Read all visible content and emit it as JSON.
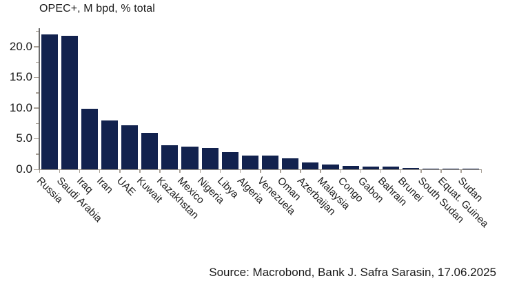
{
  "source": "Source: Macrobond, Bank J. Safra Sarasin, 17.06.2025",
  "colors": {
    "bar": "#12224E",
    "axis": "#6B6B6B",
    "tick": "#A8A096",
    "text": "#1A1A1A"
  },
  "chart_data": {
    "type": "bar",
    "title": "OPEC+, M bpd, % total",
    "categories": [
      "Russia",
      "Saudi Arabia",
      "Iraq",
      "Iran",
      "UAE",
      "Kuwait",
      "Kazakhstan",
      "Mexico",
      "Nigeria",
      "Libya",
      "Algeria",
      "Venezuela",
      "Oman",
      "Azerbaijan",
      "Malaysia",
      "Congo",
      "Gabon",
      "Bahrain",
      "Brunei",
      "South Sudan",
      "Equat. Guinea",
      "Sudan"
    ],
    "values": [
      22.0,
      21.8,
      9.9,
      8.0,
      7.2,
      5.9,
      3.9,
      3.7,
      3.5,
      2.8,
      2.3,
      2.2,
      1.8,
      1.1,
      0.8,
      0.6,
      0.5,
      0.4,
      0.25,
      0.15,
      0.1,
      0.05
    ],
    "xlabel": "",
    "ylabel": "",
    "ylim": [
      0,
      23
    ],
    "ytick_values": [
      0,
      5,
      10,
      15,
      20
    ],
    "ytick_labels": [
      "0.0",
      "5.0",
      "10.0",
      "15.0",
      "20.0"
    ],
    "minor_tick_step": 2.5,
    "minor_tick_max": 22.5,
    "grid": false,
    "legend": "none",
    "bar_color": "#12224E"
  }
}
